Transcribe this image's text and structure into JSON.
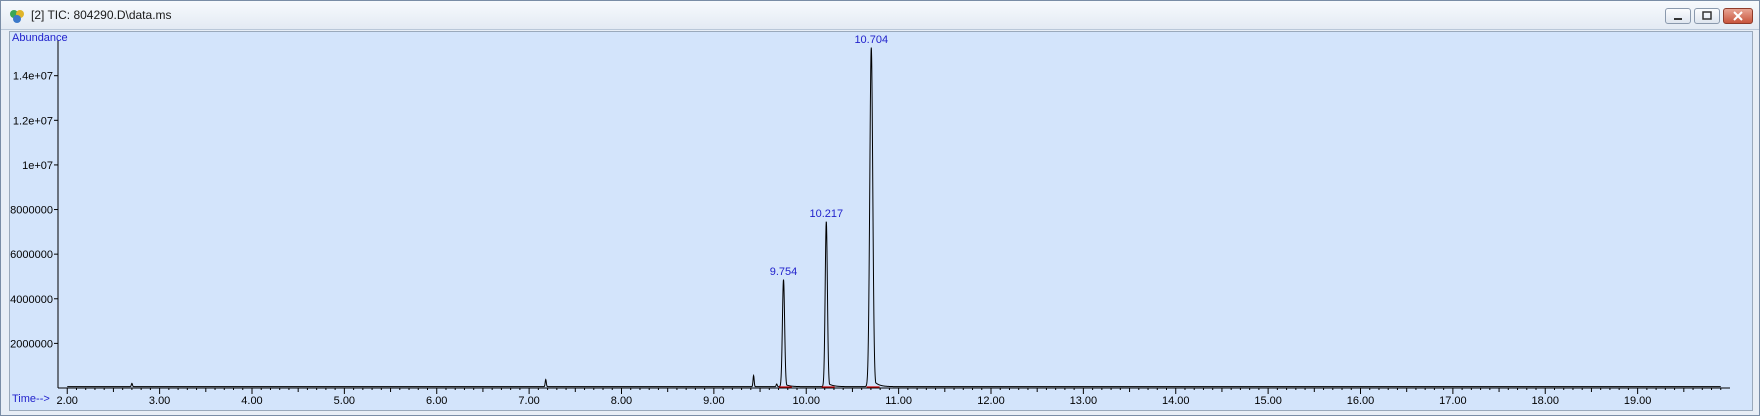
{
  "window": {
    "title": "[2] TIC: 804290.D\\data.ms",
    "icon": "chemstation-icon",
    "buttons": [
      "minimize-icon",
      "restore-icon",
      "close-icon"
    ]
  },
  "chart_data": {
    "type": "line",
    "title": "",
    "ylabel": "Abundance",
    "xlabel": "Time-->",
    "xlim": [
      1.9,
      20.0
    ],
    "ylim": [
      0,
      15600000
    ],
    "x_ticks": [
      2.0,
      3.0,
      4.0,
      5.0,
      6.0,
      7.0,
      8.0,
      9.0,
      10.0,
      11.0,
      12.0,
      13.0,
      14.0,
      15.0,
      16.0,
      17.0,
      18.0,
      19.0
    ],
    "x_tick_labels": [
      "2.00",
      "3.00",
      "4.00",
      "5.00",
      "6.00",
      "7.00",
      "8.00",
      "9.00",
      "10.00",
      "11.00",
      "12.00",
      "13.00",
      "14.00",
      "15.00",
      "16.00",
      "17.00",
      "18.00",
      "19.00"
    ],
    "y_ticks": [
      2000000,
      4000000,
      6000000,
      8000000,
      10000000,
      12000000,
      14000000
    ],
    "y_tick_labels": [
      "2000000",
      "4000000",
      "6000000",
      "8000000",
      "1e+07",
      "1.2e+07",
      "1.4e+07"
    ],
    "grid": false,
    "line_color": "#000000",
    "baseline_color": "#cc0000",
    "label_color": "#2222cc",
    "background_color": "#d3e4fb",
    "peaks": [
      {
        "rt": 9.754,
        "label": "9.754",
        "height": 4800000,
        "width": 0.012
      },
      {
        "rt": 10.217,
        "label": "10.217",
        "height": 7400000,
        "width": 0.012
      },
      {
        "rt": 10.704,
        "label": "10.704",
        "height": 15200000,
        "width": 0.016
      }
    ],
    "minor_peaks": [
      {
        "rt": 2.7,
        "height": 150000
      },
      {
        "rt": 7.18,
        "height": 320000
      },
      {
        "rt": 9.43,
        "height": 500000
      },
      {
        "rt": 9.68,
        "height": 120000
      }
    ]
  }
}
